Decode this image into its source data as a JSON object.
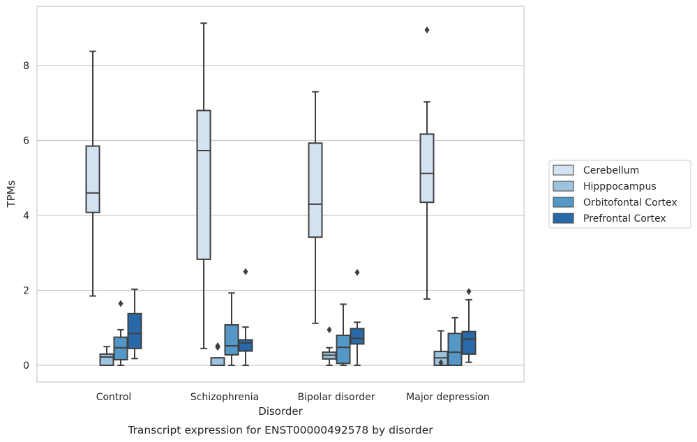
{
  "chart_data": {
    "type": "boxplot",
    "title": "Transcript expression for ENST00000492578 by disorder",
    "xlabel": "Disorder",
    "ylabel": "TPMs",
    "ylim": [
      -0.45,
      9.6
    ],
    "yticks": [
      0,
      2,
      4,
      6,
      8
    ],
    "grid": true,
    "legend_position": "right",
    "categories": [
      "Control",
      "Schizophrenia",
      "Bipolar disorder",
      "Major depression"
    ],
    "series": [
      {
        "name": "Cerebellum",
        "color": "#d3e2f1",
        "boxes": [
          {
            "whislo": 1.85,
            "q1": 4.08,
            "med": 4.6,
            "q3": 5.85,
            "whishi": 8.38,
            "fliers": []
          },
          {
            "whislo": 0.45,
            "q1": 2.83,
            "med": 5.73,
            "q3": 6.8,
            "whishi": 9.13,
            "fliers": []
          },
          {
            "whislo": 1.12,
            "q1": 3.42,
            "med": 4.3,
            "q3": 5.93,
            "whishi": 7.3,
            "fliers": []
          },
          {
            "whislo": 1.77,
            "q1": 4.35,
            "med": 5.12,
            "q3": 6.17,
            "whishi": 7.03,
            "fliers": [
              8.95
            ]
          }
        ]
      },
      {
        "name": "Hipppocampus",
        "color": "#9dc3df",
        "boxes": [
          {
            "whislo": 0.0,
            "q1": 0.0,
            "med": 0.22,
            "q3": 0.3,
            "whishi": 0.5,
            "fliers": []
          },
          {
            "whislo": 0.0,
            "q1": 0.0,
            "med": 0.0,
            "q3": 0.2,
            "whishi": 0.2,
            "fliers": [
              0.48,
              0.52
            ]
          },
          {
            "whislo": 0.0,
            "q1": 0.17,
            "med": 0.27,
            "q3": 0.35,
            "whishi": 0.47,
            "fliers": [
              0.95
            ]
          },
          {
            "whislo": 0.0,
            "q1": 0.0,
            "med": 0.2,
            "q3": 0.37,
            "whishi": 0.92,
            "fliers": [
              0.07
            ]
          }
        ]
      },
      {
        "name": "Orbitofontal Cortex",
        "color": "#5598c8",
        "boxes": [
          {
            "whislo": 0.0,
            "q1": 0.15,
            "med": 0.47,
            "q3": 0.75,
            "whishi": 0.95,
            "fliers": [
              1.65
            ]
          },
          {
            "whislo": 0.0,
            "q1": 0.28,
            "med": 0.52,
            "q3": 1.08,
            "whishi": 1.93,
            "fliers": []
          },
          {
            "whislo": 0.0,
            "q1": 0.05,
            "med": 0.48,
            "q3": 0.8,
            "whishi": 1.63,
            "fliers": []
          },
          {
            "whislo": 0.0,
            "q1": 0.0,
            "med": 0.35,
            "q3": 0.85,
            "whishi": 1.27,
            "fliers": []
          }
        ]
      },
      {
        "name": "Prefrontal Cortex",
        "color": "#2a69a8",
        "boxes": [
          {
            "whislo": 0.18,
            "q1": 0.45,
            "med": 0.85,
            "q3": 1.38,
            "whishi": 2.03,
            "fliers": []
          },
          {
            "whislo": 0.0,
            "q1": 0.38,
            "med": 0.6,
            "q3": 0.68,
            "whishi": 1.02,
            "fliers": [
              2.5
            ]
          },
          {
            "whislo": 0.0,
            "q1": 0.57,
            "med": 0.72,
            "q3": 0.98,
            "whishi": 1.15,
            "fliers": [
              2.48
            ]
          },
          {
            "whislo": 0.08,
            "q1": 0.3,
            "med": 0.7,
            "q3": 0.9,
            "whishi": 1.75,
            "fliers": [
              1.97
            ]
          }
        ]
      }
    ]
  }
}
